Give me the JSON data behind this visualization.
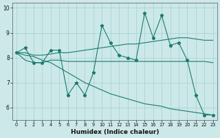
{
  "xlabel": "Humidex (Indice chaleur)",
  "bg_color": "#cce8e8",
  "grid_color": "#aad4d4",
  "line_color": "#1a7a6e",
  "xlim": [
    -0.5,
    23.5
  ],
  "ylim": [
    5.5,
    10.2
  ],
  "yticks": [
    6,
    7,
    8,
    9,
    10
  ],
  "xticks": [
    0,
    1,
    2,
    3,
    4,
    5,
    6,
    7,
    8,
    9,
    10,
    11,
    12,
    13,
    14,
    15,
    16,
    17,
    18,
    19,
    20,
    21,
    22,
    23
  ],
  "line_jagged": [
    8.2,
    8.4,
    7.8,
    7.8,
    8.3,
    8.3,
    6.5,
    7.0,
    6.5,
    7.4,
    9.3,
    8.6,
    8.1,
    8.0,
    7.9,
    9.8,
    8.8,
    9.7,
    8.5,
    8.6,
    7.9,
    6.5,
    5.7,
    5.7
  ],
  "line_up": [
    8.2,
    8.2,
    8.1,
    8.1,
    8.15,
    8.2,
    8.2,
    8.25,
    8.3,
    8.35,
    8.4,
    8.45,
    8.5,
    8.55,
    8.55,
    8.6,
    8.65,
    8.7,
    8.75,
    8.8,
    8.8,
    8.75,
    8.7,
    8.7
  ],
  "line_flat": [
    8.2,
    7.9,
    7.8,
    7.8,
    7.9,
    7.9,
    7.85,
    7.85,
    7.85,
    7.85,
    7.85,
    7.85,
    7.85,
    7.85,
    7.85,
    7.85,
    7.85,
    7.85,
    7.85,
    7.85,
    7.85,
    7.85,
    7.85,
    7.8
  ],
  "line_down": [
    8.2,
    8.1,
    8.05,
    7.9,
    7.8,
    7.6,
    7.4,
    7.2,
    7.0,
    6.85,
    6.7,
    6.55,
    6.45,
    6.35,
    6.25,
    6.15,
    6.1,
    6.05,
    5.95,
    5.9,
    5.85,
    5.8,
    5.75,
    5.7
  ]
}
